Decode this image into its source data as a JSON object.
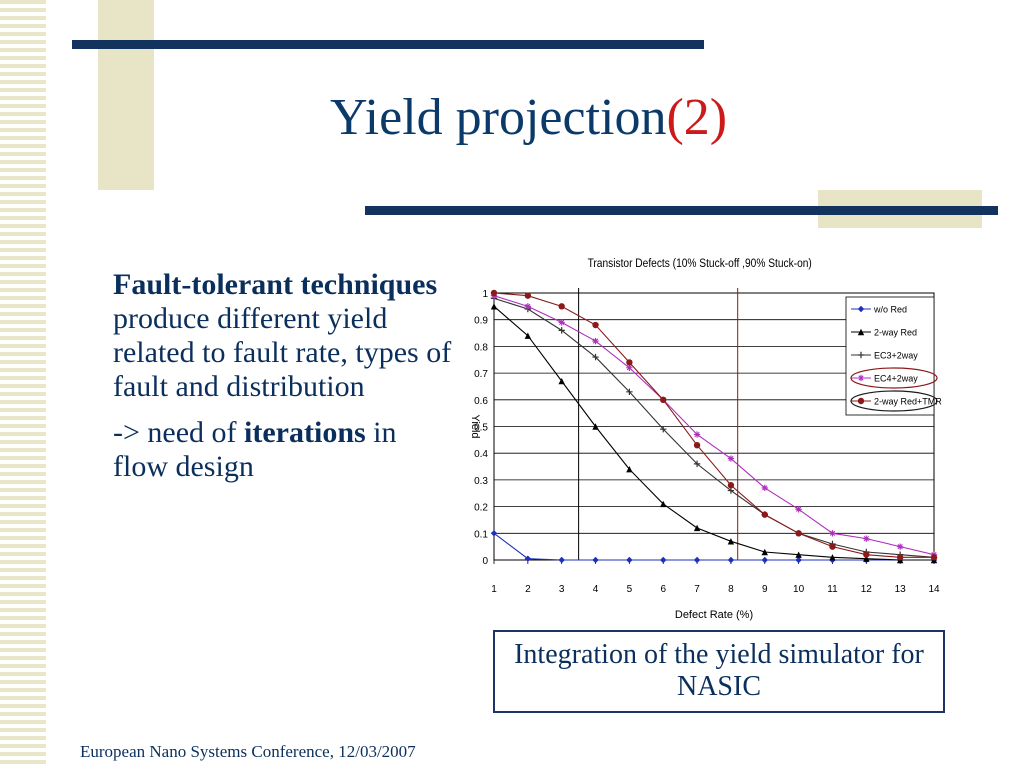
{
  "slide": {
    "title_main": "Yield projection",
    "title_num": "(2)",
    "body": {
      "p1_bold": "Fault-tolerant techniques",
      "p1_rest": " produce different yield related to fault rate, types of fault and distribution",
      "p2_pre": "-> need of ",
      "p2_bold": "iterations",
      "p2_post": " in flow design"
    },
    "caption": "Integration of the yield simulator for NASIC",
    "footer": "European Nano Systems Conference, 12/03/2007"
  },
  "chart_data": {
    "type": "line",
    "title": "Transistor Defects (10% Stuck-off ,90% Stuck-on)",
    "xlabel": "Defect Rate (%)",
    "ylabel": "Yield",
    "x": [
      1,
      2,
      3,
      4,
      5,
      6,
      7,
      8,
      9,
      10,
      11,
      12,
      13,
      14
    ],
    "xlim": [
      1,
      14
    ],
    "ylim": [
      0,
      1
    ],
    "yticks": [
      0,
      0.1,
      0.2,
      0.3,
      0.4,
      0.5,
      0.6,
      0.7,
      0.8,
      0.9,
      1
    ],
    "ytick_labels": [
      "0",
      "0.1",
      "0.2",
      "0.3",
      "0.4",
      "0.5",
      "0.6",
      "0.7",
      "0.8",
      "0.9",
      "1"
    ],
    "grid": "horizontal",
    "legend_position": "top-right",
    "vlines": [
      {
        "x": 3.5,
        "color": "#000000"
      },
      {
        "x": 8.2,
        "color": "#8b1a1a"
      }
    ],
    "series": [
      {
        "name": "w/o Red",
        "color": "#1f2fbf",
        "marker": "diamond",
        "values": [
          0.1,
          0.005,
          0,
          0,
          0,
          0,
          0,
          0,
          0,
          0,
          0,
          0,
          0,
          0
        ]
      },
      {
        "name": "2-way Red",
        "color": "#000000",
        "marker": "triangle",
        "values": [
          0.95,
          0.84,
          0.67,
          0.5,
          0.34,
          0.21,
          0.12,
          0.07,
          0.03,
          0.02,
          0.01,
          0.005,
          0,
          0
        ]
      },
      {
        "name": "EC3+2way",
        "color": "#333333",
        "marker": "plus",
        "values": [
          0.98,
          0.94,
          0.86,
          0.76,
          0.63,
          0.49,
          0.36,
          0.26,
          0.17,
          0.1,
          0.06,
          0.03,
          0.02,
          0.01
        ]
      },
      {
        "name": "EC4+2way",
        "color": "#b02fc0",
        "marker": "star",
        "values": [
          0.99,
          0.95,
          0.89,
          0.82,
          0.72,
          0.6,
          0.47,
          0.38,
          0.27,
          0.19,
          0.1,
          0.08,
          0.05,
          0.02
        ]
      },
      {
        "name": "2-way Red+TMR",
        "color": "#8b1a1a",
        "marker": "circle",
        "values": [
          1,
          0.99,
          0.95,
          0.88,
          0.74,
          0.6,
          0.43,
          0.28,
          0.17,
          0.1,
          0.05,
          0.02,
          0.01,
          0.01
        ]
      }
    ]
  }
}
